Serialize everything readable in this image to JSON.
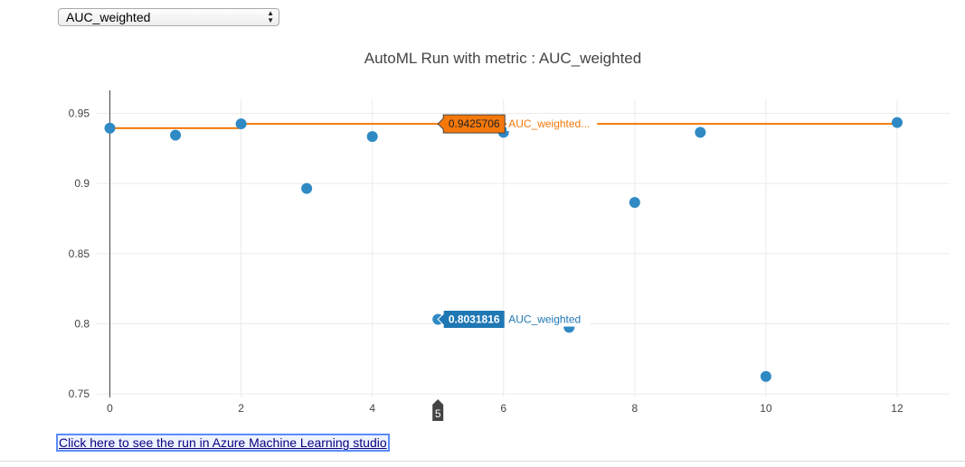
{
  "selector": {
    "selected": "AUC_weighted"
  },
  "link": {
    "text": "Click here to see the run in Azure Machine Learning studio"
  },
  "chart_data": {
    "type": "scatter",
    "title": "AutoML Run with metric : AUC_weighted",
    "xlabel": "",
    "ylabel": "",
    "xlim": [
      -0.2,
      12.8
    ],
    "ylim": [
      0.7475,
      0.96
    ],
    "x_ticks": [
      0,
      2,
      4,
      6,
      8,
      10,
      12
    ],
    "y_ticks": [
      0.75,
      0.8,
      0.85,
      0.9,
      0.95
    ],
    "y_tick_labels": [
      "0.75",
      "0.8",
      "0.85",
      "0.9",
      "0.95"
    ],
    "grid": true,
    "series": [
      {
        "type": "scatter",
        "color": "#2f8ac4",
        "x": [
          0,
          1,
          2,
          3,
          4,
          5,
          6,
          7,
          8,
          9,
          10,
          12
        ],
        "y": [
          0.9395,
          0.9345,
          0.9425706,
          0.8965,
          0.9335,
          0.8031816,
          0.9365,
          0.7975,
          0.8865,
          0.9365,
          0.7625,
          0.9435
        ]
      },
      {
        "type": "line-step",
        "color": "#f5780a",
        "x": [
          0,
          1,
          2,
          3,
          4,
          5,
          6,
          7,
          8,
          9,
          10,
          12
        ],
        "y": [
          0.9395,
          0.9395,
          0.9425706,
          0.9425706,
          0.9425706,
          0.9425706,
          0.9425706,
          0.9425706,
          0.9425706,
          0.9425706,
          0.9425706,
          0.9435
        ]
      }
    ],
    "hover": {
      "x_label": "5",
      "x": 5,
      "points": [
        {
          "series": 1,
          "value_text": "0.9425706",
          "name_text": "AUC_weighted...",
          "y": 0.9425706,
          "bg": "#f5780a",
          "fg": "#f5780a"
        },
        {
          "series": 0,
          "value_text": "0.8031816",
          "name_text": "AUC_weighted",
          "y": 0.8031816,
          "bg": "#1f77b4",
          "fg": "#1f77b4"
        }
      ]
    }
  }
}
